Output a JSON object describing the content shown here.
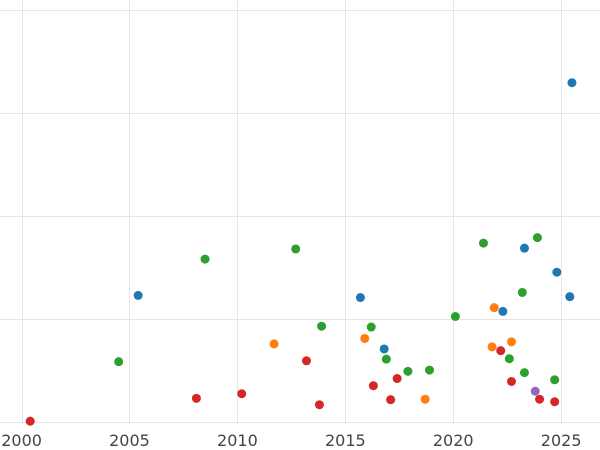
{
  "chart_data": {
    "type": "scatter",
    "title": "",
    "xlabel": "",
    "ylabel": "",
    "xlim": [
      1999.0,
      2026.8
    ],
    "ylim": [
      0,
      100
    ],
    "grid": true,
    "legend": "none",
    "x_ticks": [
      2000,
      2005,
      2010,
      2015,
      2020,
      2025
    ],
    "y_gridlines": [
      0,
      24.4,
      48.8,
      73.2,
      97.6
    ],
    "series": [
      {
        "color": "#1f77b4",
        "points": [
          {
            "x": 2005.4,
            "y": 30.0
          },
          {
            "x": 2015.7,
            "y": 29.5
          },
          {
            "x": 2016.8,
            "y": 17.3
          },
          {
            "x": 2022.3,
            "y": 26.2
          },
          {
            "x": 2023.3,
            "y": 41.2
          },
          {
            "x": 2024.8,
            "y": 35.5
          },
          {
            "x": 2025.4,
            "y": 29.7
          },
          {
            "x": 2025.5,
            "y": 80.4
          }
        ]
      },
      {
        "color": "#2ca02c",
        "points": [
          {
            "x": 2004.5,
            "y": 14.3
          },
          {
            "x": 2008.5,
            "y": 38.6
          },
          {
            "x": 2012.7,
            "y": 41.0
          },
          {
            "x": 2013.9,
            "y": 22.7
          },
          {
            "x": 2016.2,
            "y": 22.5
          },
          {
            "x": 2016.9,
            "y": 14.9
          },
          {
            "x": 2017.9,
            "y": 12.0
          },
          {
            "x": 2018.9,
            "y": 12.3
          },
          {
            "x": 2020.1,
            "y": 25.0
          },
          {
            "x": 2021.4,
            "y": 42.4
          },
          {
            "x": 2022.6,
            "y": 15.0
          },
          {
            "x": 2023.2,
            "y": 30.7
          },
          {
            "x": 2023.3,
            "y": 11.7
          },
          {
            "x": 2023.9,
            "y": 43.7
          },
          {
            "x": 2024.7,
            "y": 10.0
          }
        ]
      },
      {
        "color": "#ff7f0e",
        "points": [
          {
            "x": 2011.7,
            "y": 18.5
          },
          {
            "x": 2015.9,
            "y": 19.8
          },
          {
            "x": 2018.7,
            "y": 5.4
          },
          {
            "x": 2021.8,
            "y": 17.8
          },
          {
            "x": 2021.9,
            "y": 27.1
          },
          {
            "x": 2022.7,
            "y": 19.0
          }
        ]
      },
      {
        "color": "#d62728",
        "points": [
          {
            "x": 2000.4,
            "y": 0.2
          },
          {
            "x": 2008.1,
            "y": 5.6
          },
          {
            "x": 2010.2,
            "y": 6.7
          },
          {
            "x": 2013.2,
            "y": 14.5
          },
          {
            "x": 2013.8,
            "y": 4.1
          },
          {
            "x": 2016.3,
            "y": 8.6
          },
          {
            "x": 2017.1,
            "y": 5.3
          },
          {
            "x": 2017.4,
            "y": 10.3
          },
          {
            "x": 2022.2,
            "y": 16.9
          },
          {
            "x": 2022.7,
            "y": 9.6
          },
          {
            "x": 2024.0,
            "y": 5.4
          },
          {
            "x": 2024.7,
            "y": 4.8
          }
        ]
      },
      {
        "color": "#9467bd",
        "points": [
          {
            "x": 2023.8,
            "y": 7.3
          }
        ]
      }
    ]
  }
}
